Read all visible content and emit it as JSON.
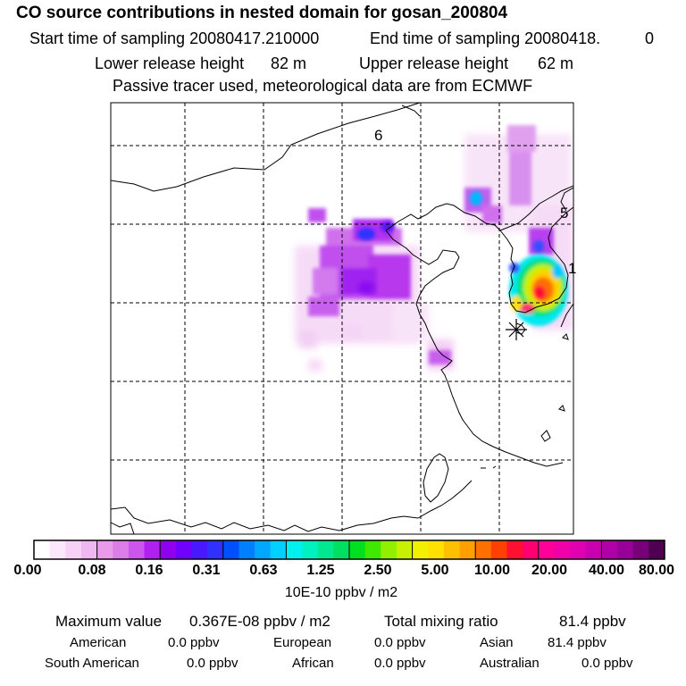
{
  "header": {
    "title": "CO  source contributions in nested domain for gosan_200804",
    "start_label": "Start time of sampling 20080417.210000",
    "end_label": "End time of sampling 20080418.",
    "end_value": "0",
    "lower_label": "Lower release height",
    "lower_value": "82 m",
    "upper_label": "Upper release height",
    "upper_value": "62 m",
    "tracer_note": "Passive tracer used, meteorological data are from ECMWF"
  },
  "map": {
    "grid_labels": [
      "6",
      "5",
      "1"
    ],
    "receptor_symbol": "*"
  },
  "colorbar": {
    "tick_labels": [
      "0.00",
      "0.08",
      "0.16",
      "0.31",
      "0.63",
      "1.25",
      "2.50",
      "5.00",
      "10.00",
      "20.00",
      "40.00",
      "80.00"
    ],
    "unit": "10E-10 ppbv / m2",
    "colors": [
      "#ffffff",
      "#fbe8fb",
      "#f6d2f6",
      "#f0b8f0",
      "#e79be8",
      "#dc7ce6",
      "#cc55ee",
      "#b020f0",
      "#9000f0",
      "#7000ff",
      "#4818ff",
      "#3030ff",
      "#0050ff",
      "#0080ff",
      "#00a8ff",
      "#00d0ff",
      "#00f0f0",
      "#00f0c0",
      "#00e890",
      "#00e060",
      "#00e020",
      "#40e800",
      "#90f000",
      "#c8f000",
      "#f0f000",
      "#ffe000",
      "#ffc000",
      "#ffa000",
      "#ff7000",
      "#ff4000",
      "#ff1030",
      "#ff0070",
      "#ff0098",
      "#f000a8",
      "#e000b0",
      "#c800b0",
      "#b000a8",
      "#980098",
      "#780078",
      "#500050"
    ]
  },
  "stats": {
    "max_label": "Maximum value",
    "max_value": "0.367E-08 ppbv / m2",
    "total_label": "Total mixing ratio",
    "total_value": "81.4 ppbv",
    "american_label": "American",
    "american_value": "0.0 ppbv",
    "european_label": "European",
    "european_value": "0.0 ppbv",
    "asian_label": "Asian",
    "asian_value": "81.4 ppbv",
    "south_american_label": "South American",
    "south_american_value": "0.0 ppbv",
    "african_label": "African",
    "african_value": "0.0 ppbv",
    "australian_label": "Australian",
    "australian_value": "0.0 ppbv"
  }
}
